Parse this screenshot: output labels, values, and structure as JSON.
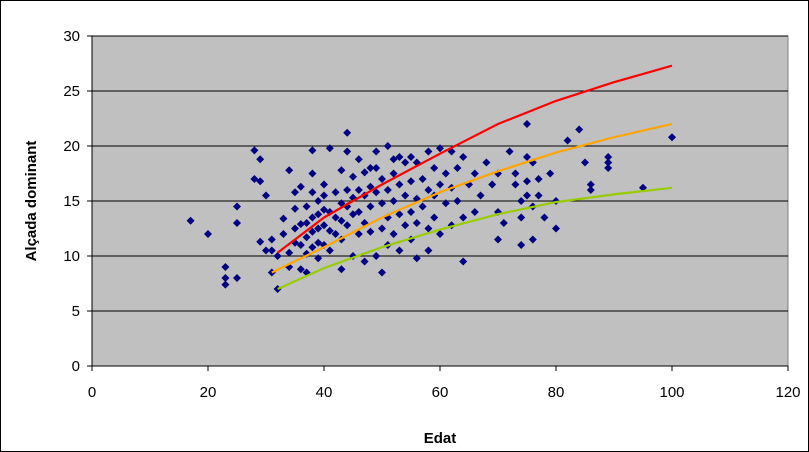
{
  "chart_data": {
    "type": "scatter",
    "title": "",
    "xlabel": "Edat",
    "ylabel": "Alçada dominant",
    "xlim": [
      0,
      120
    ],
    "ylim": [
      0,
      30
    ],
    "xticks": [
      0,
      20,
      40,
      60,
      80,
      100,
      120
    ],
    "yticks": [
      0,
      5,
      10,
      15,
      20,
      25,
      30
    ],
    "grid": "horizontal",
    "plot_background": "#c0c0c0",
    "scatter_series": {
      "color": "#000080",
      "marker": "diamond",
      "points": [
        [
          17,
          13.2
        ],
        [
          20,
          12.0
        ],
        [
          23,
          9.0
        ],
        [
          23,
          8.0
        ],
        [
          23,
          7.4
        ],
        [
          25,
          8.0
        ],
        [
          25,
          14.5
        ],
        [
          25,
          13.0
        ],
        [
          28,
          19.6
        ],
        [
          28,
          17.0
        ],
        [
          29,
          18.8
        ],
        [
          29,
          16.8
        ],
        [
          29,
          11.3
        ],
        [
          30,
          15.5
        ],
        [
          30,
          10.5
        ],
        [
          31,
          10.5
        ],
        [
          31,
          8.5
        ],
        [
          31,
          11.5
        ],
        [
          32,
          7.0
        ],
        [
          32,
          10.0
        ],
        [
          33,
          13.4
        ],
        [
          33,
          12.0
        ],
        [
          34,
          10.3
        ],
        [
          34,
          17.8
        ],
        [
          34,
          9.0
        ],
        [
          35,
          12.5
        ],
        [
          35,
          14.3
        ],
        [
          35,
          15.8
        ],
        [
          35,
          11.2
        ],
        [
          36,
          12.9
        ],
        [
          36,
          16.3
        ],
        [
          36,
          11.0
        ],
        [
          36,
          8.8
        ],
        [
          37,
          13.0
        ],
        [
          37,
          14.5
        ],
        [
          37,
          11.7
        ],
        [
          37,
          10.2
        ],
        [
          37,
          8.5
        ],
        [
          38,
          19.6
        ],
        [
          38,
          17.5
        ],
        [
          38,
          15.8
        ],
        [
          38,
          13.5
        ],
        [
          38,
          12.2
        ],
        [
          38,
          10.8
        ],
        [
          39,
          15.0
        ],
        [
          39,
          13.8
        ],
        [
          39,
          12.5
        ],
        [
          39,
          11.2
        ],
        [
          39,
          9.8
        ],
        [
          40,
          16.5
        ],
        [
          40,
          14.2
        ],
        [
          40,
          12.8
        ],
        [
          40,
          11.0
        ],
        [
          40,
          15.5
        ],
        [
          41,
          19.8
        ],
        [
          41,
          14.0
        ],
        [
          41,
          12.3
        ],
        [
          41,
          10.5
        ],
        [
          42,
          15.8
        ],
        [
          42,
          13.5
        ],
        [
          42,
          12.0
        ],
        [
          43,
          17.8
        ],
        [
          43,
          14.8
        ],
        [
          43,
          13.2
        ],
        [
          43,
          11.5
        ],
        [
          43,
          8.8
        ],
        [
          44,
          21.2
        ],
        [
          44,
          19.5
        ],
        [
          44,
          16.0
        ],
        [
          44,
          14.5
        ],
        [
          44,
          12.8
        ],
        [
          45,
          17.2
        ],
        [
          45,
          15.3
        ],
        [
          45,
          13.8
        ],
        [
          45,
          10.0
        ],
        [
          46,
          18.8
        ],
        [
          46,
          16.0
        ],
        [
          46,
          14.0
        ],
        [
          46,
          12.0
        ],
        [
          47,
          17.6
        ],
        [
          47,
          15.5
        ],
        [
          47,
          13.0
        ],
        [
          47,
          9.5
        ],
        [
          48,
          18.0
        ],
        [
          48,
          16.3
        ],
        [
          48,
          14.5
        ],
        [
          48,
          12.2
        ],
        [
          49,
          19.5
        ],
        [
          49,
          18.0
        ],
        [
          49,
          15.8
        ],
        [
          49,
          10.0
        ],
        [
          50,
          17.0
        ],
        [
          50,
          14.8
        ],
        [
          50,
          12.5
        ],
        [
          50,
          8.5
        ],
        [
          51,
          20.0
        ],
        [
          51,
          16.0
        ],
        [
          51,
          13.5
        ],
        [
          51,
          11.0
        ],
        [
          52,
          18.8
        ],
        [
          52,
          17.5
        ],
        [
          52,
          15.0
        ],
        [
          52,
          12.0
        ],
        [
          53,
          19.0
        ],
        [
          53,
          16.5
        ],
        [
          53,
          13.8
        ],
        [
          53,
          10.5
        ],
        [
          54,
          18.5
        ],
        [
          54,
          15.5
        ],
        [
          54,
          12.8
        ],
        [
          55,
          19.0
        ],
        [
          55,
          16.8
        ],
        [
          55,
          14.0
        ],
        [
          55,
          11.5
        ],
        [
          56,
          18.5
        ],
        [
          56,
          15.2
        ],
        [
          56,
          13.0
        ],
        [
          56,
          9.8
        ],
        [
          57,
          17.0
        ],
        [
          57,
          14.5
        ],
        [
          58,
          19.5
        ],
        [
          58,
          16.0
        ],
        [
          58,
          12.5
        ],
        [
          58,
          10.5
        ],
        [
          59,
          18.0
        ],
        [
          59,
          15.5
        ],
        [
          59,
          13.5
        ],
        [
          60,
          19.8
        ],
        [
          60,
          16.5
        ],
        [
          60,
          12.0
        ],
        [
          61,
          17.5
        ],
        [
          61,
          14.8
        ],
        [
          62,
          19.5
        ],
        [
          62,
          16.2
        ],
        [
          62,
          12.8
        ],
        [
          63,
          18.0
        ],
        [
          63,
          15.0
        ],
        [
          64,
          19.0
        ],
        [
          64,
          13.5
        ],
        [
          64,
          9.5
        ],
        [
          65,
          16.5
        ],
        [
          66,
          17.5
        ],
        [
          66,
          14.0
        ],
        [
          67,
          15.5
        ],
        [
          68,
          18.5
        ],
        [
          69,
          16.5
        ],
        [
          70,
          17.5
        ],
        [
          70,
          14.0
        ],
        [
          70,
          11.5
        ],
        [
          71,
          13.0
        ],
        [
          72,
          19.5
        ],
        [
          73,
          17.5
        ],
        [
          73,
          16.5
        ],
        [
          74,
          15.0
        ],
        [
          74,
          13.5
        ],
        [
          74,
          11.0
        ],
        [
          75,
          22.0
        ],
        [
          75,
          19.0
        ],
        [
          75,
          16.8
        ],
        [
          75,
          15.5
        ],
        [
          76,
          18.5
        ],
        [
          76,
          14.5
        ],
        [
          76,
          11.5
        ],
        [
          77,
          17.0
        ],
        [
          77,
          15.5
        ],
        [
          78,
          13.5
        ],
        [
          79,
          17.5
        ],
        [
          80,
          15.0
        ],
        [
          80,
          12.5
        ],
        [
          82,
          20.5
        ],
        [
          84,
          21.5
        ],
        [
          85,
          18.5
        ],
        [
          86,
          16.0
        ],
        [
          86,
          16.5
        ],
        [
          89,
          19.0
        ],
        [
          89,
          18.5
        ],
        [
          89,
          18.0
        ],
        [
          95,
          16.2
        ],
        [
          100,
          20.8
        ]
      ]
    },
    "series": [
      {
        "color": "#ff0000",
        "x": [
          32,
          40,
          50,
          60,
          70,
          80,
          90,
          100
        ],
        "values": [
          10.3,
          13.5,
          16.5,
          19.3,
          22.0,
          24.1,
          25.8,
          27.3
        ]
      },
      {
        "color": "#ffa500",
        "x": [
          31,
          40,
          50,
          60,
          70,
          80,
          90,
          100
        ],
        "values": [
          8.5,
          10.8,
          13.5,
          15.8,
          17.7,
          19.4,
          20.8,
          22.0
        ]
      },
      {
        "color": "#99cc00",
        "x": [
          32,
          40,
          50,
          60,
          70,
          80,
          90,
          100
        ],
        "values": [
          7.0,
          8.9,
          10.8,
          12.4,
          13.8,
          14.9,
          15.6,
          16.2
        ]
      }
    ]
  }
}
